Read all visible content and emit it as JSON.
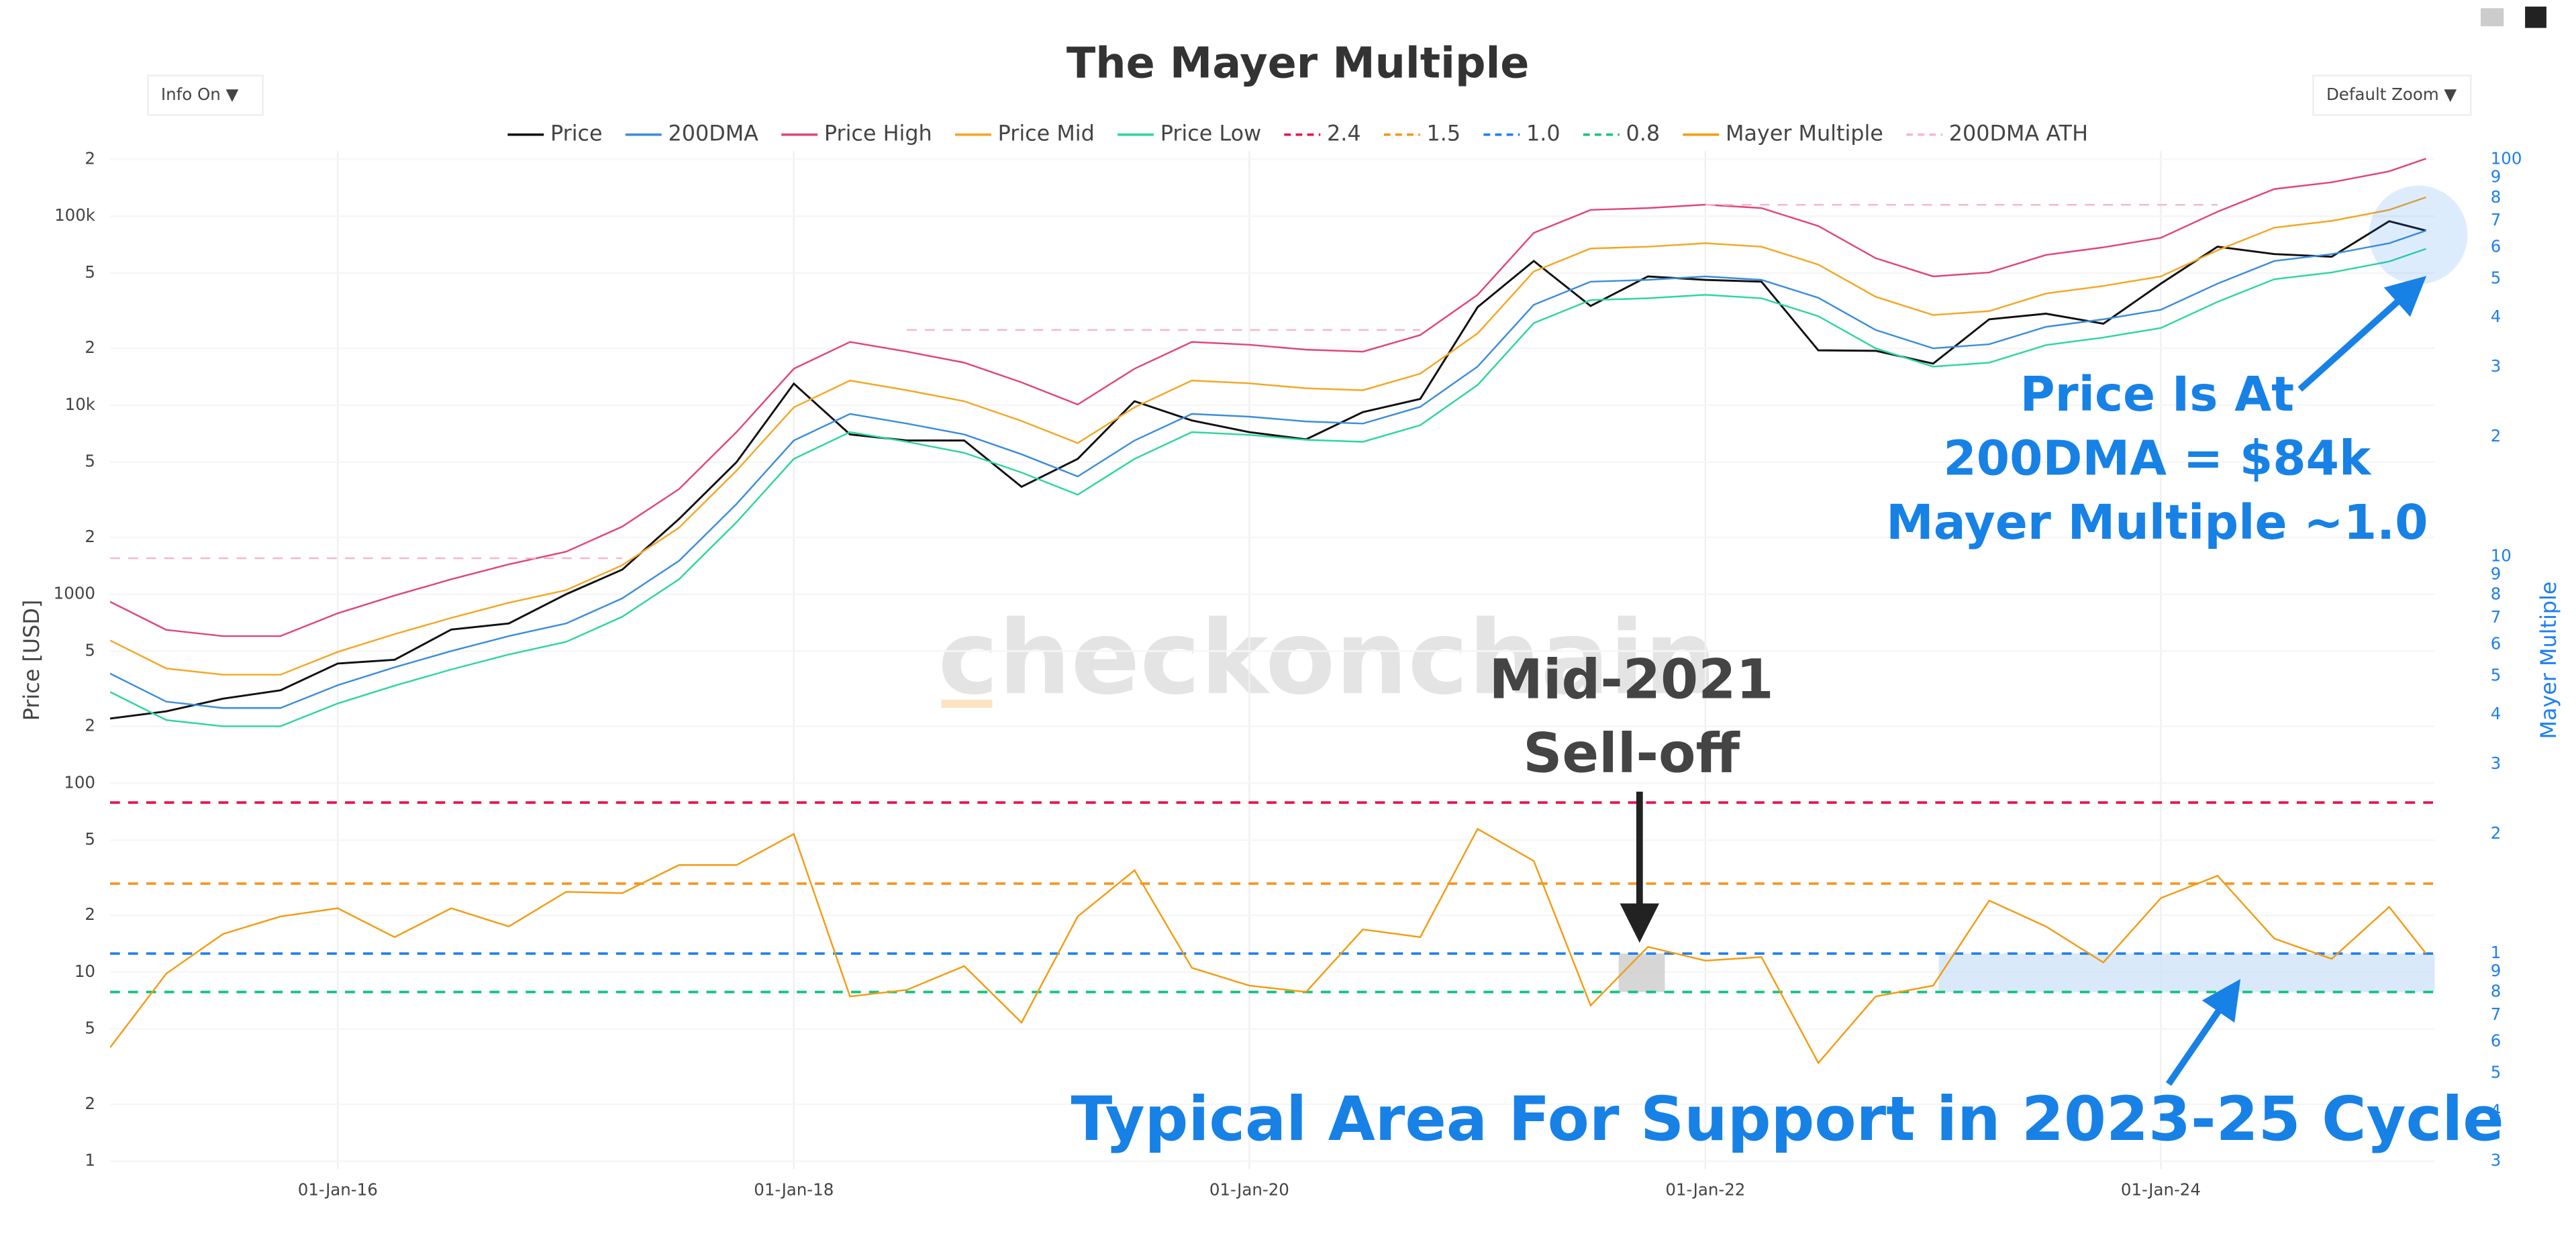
{
  "chart_data": {
    "type": "line",
    "title": "The Mayer Multiple",
    "controls": [
      "Info On  ▼",
      "Default Zoom  ▼"
    ],
    "watermark": "checkonchain",
    "ylabel": "Price [USD]",
    "y2label": "Mayer Multiple",
    "annotations": [
      "Price Is At",
      "200DMA = $84k",
      "Mayer Multiple ~1.0",
      "Mid-2021",
      "Sell-off",
      "Typical Area For Support in 2023-25 Cycle"
    ],
    "log_scale": true,
    "grid": true,
    "xlim": [
      "2015-01-01",
      "2025-03-15"
    ],
    "xticks": [
      {
        "value": "2016-01-01",
        "label": "01-Jan-16"
      },
      {
        "value": "2018-01-01",
        "label": "01-Jan-18"
      },
      {
        "value": "2020-01-01",
        "label": "01-Jan-20"
      },
      {
        "value": "2022-01-01",
        "label": "01-Jan-22"
      },
      {
        "value": "2024-01-01",
        "label": "01-Jan-24"
      }
    ],
    "ylim": [
      1,
      200000
    ],
    "yticks": [
      1,
      2,
      5,
      10,
      {
        "value": 20,
        "label": "2"
      },
      {
        "value": 50,
        "label": "5"
      },
      100,
      {
        "value": 200,
        "label": "2"
      },
      {
        "value": 500,
        "label": "5"
      },
      1000,
      {
        "value": 2000,
        "label": "2"
      },
      {
        "value": 5000,
        "label": "5"
      },
      {
        "value": 10000,
        "label": "10k"
      },
      {
        "value": 20000,
        "label": "2"
      },
      {
        "value": 50000,
        "label": "5"
      },
      {
        "value": 100000,
        "label": "100k"
      },
      {
        "value": 200000,
        "label": "2"
      }
    ],
    "y2lim": [
      0.3,
      100
    ],
    "y2ticks": [
      {
        "value": 0.3,
        "label": "3"
      },
      {
        "value": 0.4,
        "label": "4"
      },
      {
        "value": 0.5,
        "label": "5"
      },
      {
        "value": 0.6,
        "label": "6"
      },
      {
        "value": 0.7,
        "label": "7"
      },
      {
        "value": 0.8,
        "label": "8"
      },
      {
        "value": 0.9,
        "label": "9"
      },
      1,
      2,
      3,
      4,
      5,
      6,
      7,
      8,
      9,
      10,
      {
        "value": 20,
        "label": "2"
      },
      {
        "value": 30,
        "label": "3"
      },
      {
        "value": 40,
        "label": "4"
      },
      {
        "value": 50,
        "label": "5"
      },
      {
        "value": 60,
        "label": "6"
      },
      {
        "value": 70,
        "label": "7"
      },
      {
        "value": 80,
        "label": "8"
      },
      {
        "value": 90,
        "label": "9"
      },
      100
    ],
    "x": [
      "2015-01-01",
      "2015-04-01",
      "2015-07-01",
      "2015-10-01",
      "2016-01-01",
      "2016-04-01",
      "2016-07-01",
      "2016-10-01",
      "2017-01-01",
      "2017-04-01",
      "2017-07-01",
      "2017-10-01",
      "2018-01-01",
      "2018-04-01",
      "2018-07-01",
      "2018-10-01",
      "2019-01-01",
      "2019-04-01",
      "2019-07-01",
      "2019-10-01",
      "2020-01-01",
      "2020-04-01",
      "2020-07-01",
      "2020-10-01",
      "2021-01-01",
      "2021-04-01",
      "2021-07-01",
      "2021-10-01",
      "2022-01-01",
      "2022-04-01",
      "2022-07-01",
      "2022-10-01",
      "2023-01-01",
      "2023-04-01",
      "2023-07-01",
      "2023-10-01",
      "2024-01-01",
      "2024-04-01",
      "2024-07-01",
      "2024-10-01",
      "2025-01-01",
      "2025-03-01"
    ],
    "series": [
      {
        "name": "Price",
        "color": "#111111",
        "width": 1.2,
        "values": [
          220,
          240,
          280,
          310,
          430,
          450,
          650,
          700,
          1000,
          1350,
          2500,
          5000,
          13000,
          7000,
          6500,
          6500,
          3700,
          5200,
          10500,
          8300,
          7200,
          6600,
          9200,
          10800,
          33000,
          58000,
          33500,
          48000,
          46000,
          45000,
          19500,
          19400,
          16600,
          28500,
          30500,
          27000,
          44000,
          69000,
          63000,
          61000,
          94000,
          84000
        ]
      },
      {
        "name": "200DMA",
        "color": "#3c8ddc",
        "width": 1,
        "values": [
          380,
          270,
          250,
          250,
          330,
          410,
          500,
          600,
          700,
          950,
          1500,
          3000,
          6500,
          9000,
          8000,
          7000,
          5500,
          4200,
          6500,
          9000,
          8700,
          8200,
          8000,
          9800,
          16000,
          34000,
          45000,
          46000,
          48000,
          46000,
          37000,
          25000,
          20000,
          21000,
          26000,
          28500,
          32000,
          44000,
          58000,
          63000,
          72000,
          84000
        ]
      },
      {
        "name": "Price High",
        "color": "#e0457b",
        "width": 1,
        "values": [
          912,
          648,
          600,
          600,
          792,
          984,
          1200,
          1440,
          1680,
          2280,
          3600,
          7200,
          15600,
          21600,
          19200,
          16800,
          13200,
          10080,
          15600,
          21600,
          20880,
          19680,
          19200,
          23520,
          38400,
          81600,
          108000,
          110400,
          115200,
          110400,
          88800,
          60000,
          48000,
          50400,
          62400,
          68400,
          76800,
          105600,
          139200,
          151200,
          172800,
          201600
        ]
      },
      {
        "name": "Price Mid",
        "color": "#f5a623",
        "width": 1,
        "values": [
          570,
          405,
          375,
          375,
          495,
          615,
          750,
          900,
          1050,
          1425,
          2250,
          4500,
          9750,
          13500,
          12000,
          10500,
          8250,
          6300,
          9750,
          13500,
          13050,
          12300,
          12000,
          14700,
          24000,
          51000,
          67500,
          69000,
          72000,
          69000,
          55500,
          37500,
          30000,
          31500,
          39000,
          42750,
          48000,
          66000,
          87000,
          94500,
          108000,
          126000
        ]
      },
      {
        "name": "Price Low",
        "color": "#2ed69b",
        "width": 1,
        "values": [
          304,
          216,
          200,
          200,
          264,
          328,
          400,
          480,
          560,
          760,
          1200,
          2400,
          5200,
          7200,
          6400,
          5600,
          4400,
          3360,
          5200,
          7200,
          6960,
          6560,
          6400,
          7840,
          12800,
          27200,
          36000,
          36800,
          38400,
          36800,
          29600,
          20000,
          16000,
          16800,
          20800,
          22800,
          25600,
          35200,
          46400,
          50400,
          57600,
          67200
        ]
      },
      {
        "name": "2.4",
        "color": "#e8124f",
        "dash": true,
        "axis": "y2",
        "level": 2.4
      },
      {
        "name": "1.5",
        "color": "#f7931a",
        "dash": true,
        "axis": "y2",
        "level": 1.5
      },
      {
        "name": "1.0",
        "color": "#1e7ff0",
        "dash": true,
        "axis": "y2",
        "level": 1
      },
      {
        "name": "0.8",
        "color": "#11c47a",
        "dash": true,
        "axis": "y2",
        "level": 0.8
      },
      {
        "name": "Mayer Multiple",
        "color": "#f39c12",
        "width": 1,
        "axis": "y2",
        "values": [
          0.58,
          0.89,
          1.12,
          1.24,
          1.3,
          1.1,
          1.3,
          1.17,
          1.43,
          1.42,
          1.67,
          1.67,
          2.0,
          0.78,
          0.81,
          0.93,
          0.67,
          1.24,
          1.62,
          0.92,
          0.83,
          0.8,
          1.15,
          1.1,
          2.06,
          1.71,
          0.74,
          1.04,
          0.96,
          0.98,
          0.53,
          0.78,
          0.83,
          1.36,
          1.17,
          0.95,
          1.38,
          1.57,
          1.09,
          0.97,
          1.31,
          1.0
        ]
      },
      {
        "name": "200DMA ATH",
        "color": "#f7b7c8",
        "dash": true,
        "width": 1,
        "values": [
          1550,
          1550,
          1550,
          1550,
          1550,
          1550,
          1550,
          1550,
          1550,
          1550,
          null,
          null,
          null,
          null,
          25000,
          25000,
          25000,
          25000,
          25000,
          25000,
          25000,
          25000,
          25000,
          25000,
          null,
          null,
          null,
          null,
          115000,
          115000,
          115000,
          115000,
          115000,
          115000,
          115000,
          115000,
          115000,
          115000,
          null,
          null,
          null,
          null
        ]
      }
    ],
    "shaded_areas": [
      {
        "x": [
          "2021-08-15",
          "2021-10-28"
        ],
        "y2": [
          0.8,
          1
        ],
        "color": "#cccccc"
      },
      {
        "x": [
          "2023-01-10",
          "2025-03-15"
        ],
        "y2": [
          0.8,
          1
        ],
        "color": "#cfe3f7"
      }
    ]
  }
}
